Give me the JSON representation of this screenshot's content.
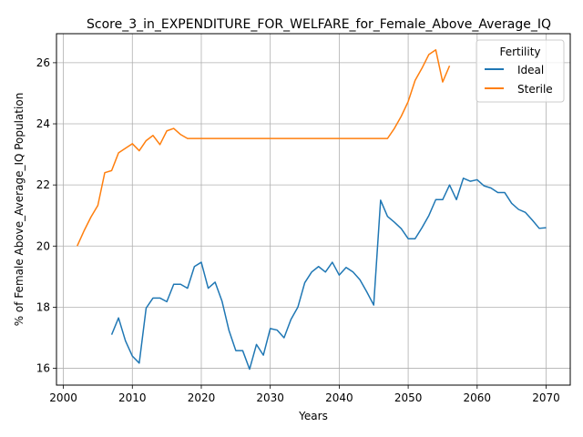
{
  "chart_data": {
    "type": "line",
    "title": "Score_3_in_EXPENDITURE_FOR_WELFARE_for_Female_Above_Average_IQ",
    "xlabel": "Years",
    "ylabel": "% of Female Above_Average_IQ Population",
    "xlim": [
      1999,
      2073.5
    ],
    "ylim": [
      15.45,
      26.95
    ],
    "xticks": [
      2000,
      2010,
      2020,
      2030,
      2040,
      2050,
      2060,
      2070
    ],
    "yticks": [
      16,
      18,
      20,
      22,
      24,
      26
    ],
    "grid": true,
    "legend": {
      "title": "Fertility",
      "placement": "top-right"
    },
    "series": [
      {
        "name": "Ideal",
        "color": "#1f77b4",
        "x": [
          2007,
          2008,
          2009,
          2010,
          2011,
          2012,
          2013,
          2014,
          2015,
          2016,
          2017,
          2018,
          2019,
          2020,
          2021,
          2022,
          2023,
          2024,
          2025,
          2026,
          2027,
          2028,
          2029,
          2030,
          2031,
          2032,
          2033,
          2034,
          2035,
          2036,
          2037,
          2038,
          2039,
          2040,
          2041,
          2042,
          2043,
          2044,
          2045,
          2046,
          2047,
          2048,
          2049,
          2050,
          2051,
          2052,
          2053,
          2054,
          2055,
          2056,
          2057,
          2058,
          2059,
          2060,
          2061,
          2062,
          2063,
          2064,
          2065,
          2066,
          2067,
          2068,
          2069,
          2070
        ],
        "y": [
          17.1,
          17.65,
          16.9,
          16.4,
          16.17,
          17.97,
          18.3,
          18.3,
          18.18,
          18.75,
          18.75,
          18.62,
          19.33,
          19.47,
          18.62,
          18.82,
          18.2,
          17.25,
          16.58,
          16.58,
          15.97,
          16.78,
          16.43,
          17.3,
          17.25,
          17.0,
          17.6,
          18.0,
          18.8,
          19.15,
          19.33,
          19.15,
          19.47,
          19.05,
          19.3,
          19.15,
          18.9,
          18.5,
          18.07,
          21.5,
          20.97,
          20.78,
          20.57,
          20.24,
          20.24,
          20.6,
          21.0,
          21.52,
          21.52,
          22.0,
          21.52,
          22.22,
          22.12,
          22.17,
          21.97,
          21.9,
          21.75,
          21.75,
          21.4,
          21.2,
          21.1,
          20.85,
          20.58,
          20.6
        ]
      },
      {
        "name": "Sterile",
        "color": "#ff7f0e",
        "x": [
          2002,
          2003,
          2004,
          2005,
          2006,
          2007,
          2008,
          2009,
          2010,
          2011,
          2012,
          2013,
          2014,
          2015,
          2016,
          2017,
          2018,
          2019,
          2020,
          2021,
          2022,
          2023,
          2024,
          2025,
          2026,
          2027,
          2028,
          2029,
          2030,
          2031,
          2032,
          2033,
          2034,
          2035,
          2036,
          2037,
          2038,
          2039,
          2040,
          2041,
          2042,
          2043,
          2044,
          2045,
          2046,
          2047,
          2048,
          2049,
          2050,
          2051,
          2052,
          2053,
          2054,
          2055,
          2056
        ],
        "y": [
          20.0,
          20.5,
          20.95,
          21.33,
          22.4,
          22.47,
          23.05,
          23.2,
          23.35,
          23.12,
          23.45,
          23.62,
          23.32,
          23.77,
          23.85,
          23.65,
          23.52,
          23.52,
          23.52,
          23.52,
          23.52,
          23.52,
          23.52,
          23.52,
          23.52,
          23.52,
          23.52,
          23.52,
          23.52,
          23.52,
          23.52,
          23.52,
          23.52,
          23.52,
          23.52,
          23.52,
          23.52,
          23.52,
          23.52,
          23.52,
          23.52,
          23.52,
          23.52,
          23.52,
          23.52,
          23.52,
          23.85,
          24.25,
          24.73,
          25.42,
          25.82,
          26.27,
          26.42,
          25.37,
          25.9
        ]
      }
    ]
  }
}
